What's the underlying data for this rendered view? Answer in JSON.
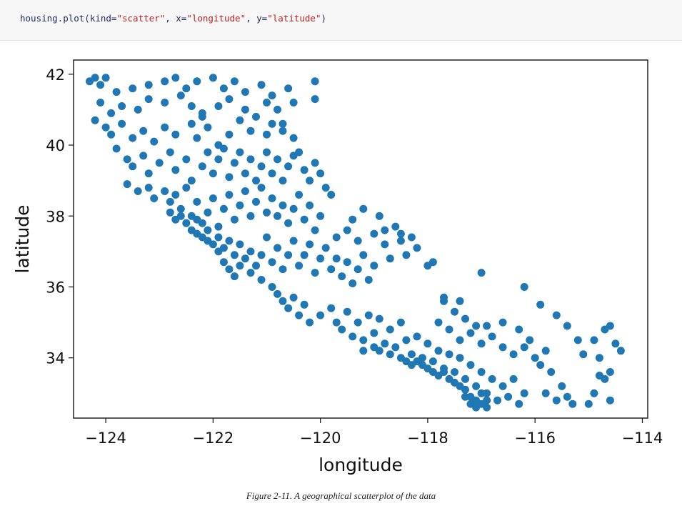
{
  "code": {
    "prefix": "housing.plot(kind=",
    "kind_value": "\"scatter\"",
    "sep1": ", x=",
    "x_value": "\"longitude\"",
    "sep2": ", y=",
    "y_value": "\"latitude\"",
    "suffix": ")"
  },
  "caption": "Figure 2-11. A geographical scatterplot of the data",
  "chart_data": {
    "type": "scatter",
    "title": "",
    "xlabel": "longitude",
    "ylabel": "latitude",
    "xlim": [
      -124.6,
      -113.9
    ],
    "ylim": [
      32.3,
      42.4
    ],
    "xticks": [
      -124,
      -122,
      -120,
      -118,
      -116,
      -114
    ],
    "xtick_labels": [
      "−124",
      "−122",
      "−120",
      "−118",
      "−116",
      "−114"
    ],
    "yticks": [
      34,
      36,
      38,
      40,
      42
    ],
    "ytick_labels": [
      "34",
      "36",
      "38",
      "40",
      "42"
    ],
    "grid": false,
    "marker_color": "#1f77b4",
    "points": [
      [
        -124.3,
        41.8
      ],
      [
        -124.2,
        41.9
      ],
      [
        -124.1,
        41.7
      ],
      [
        -124.0,
        41.9
      ],
      [
        -123.8,
        41.5
      ],
      [
        -123.5,
        41.6
      ],
      [
        -123.2,
        41.7
      ],
      [
        -122.9,
        41.8
      ],
      [
        -122.7,
        41.9
      ],
      [
        -122.5,
        41.6
      ],
      [
        -122.3,
        41.8
      ],
      [
        -122.0,
        41.9
      ],
      [
        -121.8,
        41.6
      ],
      [
        -121.6,
        41.8
      ],
      [
        -121.4,
        41.5
      ],
      [
        -121.1,
        41.7
      ],
      [
        -120.9,
        41.4
      ],
      [
        -120.6,
        41.6
      ],
      [
        -120.5,
        41.2
      ],
      [
        -120.1,
        41.8
      ],
      [
        -120.1,
        41.3
      ],
      [
        -124.1,
        41.2
      ],
      [
        -123.9,
        40.9
      ],
      [
        -123.7,
        41.1
      ],
      [
        -123.4,
        41.0
      ],
      [
        -123.2,
        41.3
      ],
      [
        -122.9,
        41.2
      ],
      [
        -122.6,
        41.4
      ],
      [
        -122.4,
        41.1
      ],
      [
        -122.2,
        40.9
      ],
      [
        -121.9,
        41.1
      ],
      [
        -121.7,
        41.3
      ],
      [
        -121.4,
        41.0
      ],
      [
        -121.2,
        40.8
      ],
      [
        -121.0,
        41.2
      ],
      [
        -120.8,
        41.0
      ],
      [
        -120.7,
        40.6
      ],
      [
        -124.2,
        40.7
      ],
      [
        -124.0,
        40.5
      ],
      [
        -123.9,
        40.3
      ],
      [
        -123.7,
        40.6
      ],
      [
        -123.5,
        40.2
      ],
      [
        -123.3,
        40.4
      ],
      [
        -123.1,
        40.1
      ],
      [
        -122.9,
        40.5
      ],
      [
        -122.7,
        40.3
      ],
      [
        -122.4,
        40.6
      ],
      [
        -122.3,
        40.2
      ],
      [
        -122.2,
        40.8
      ],
      [
        -122.1,
        40.5
      ],
      [
        -121.9,
        40.0
      ],
      [
        -121.7,
        40.3
      ],
      [
        -121.5,
        40.7
      ],
      [
        -121.3,
        40.4
      ],
      [
        -121.0,
        40.3
      ],
      [
        -120.9,
        40.6
      ],
      [
        -120.7,
        40.4
      ],
      [
        -120.5,
        40.2
      ],
      [
        -120.4,
        39.8
      ],
      [
        -123.8,
        39.9
      ],
      [
        -123.6,
        39.6
      ],
      [
        -123.5,
        39.4
      ],
      [
        -123.3,
        39.7
      ],
      [
        -123.2,
        39.2
      ],
      [
        -123.0,
        39.5
      ],
      [
        -122.8,
        39.8
      ],
      [
        -122.7,
        39.3
      ],
      [
        -122.5,
        39.6
      ],
      [
        -122.4,
        39.0
      ],
      [
        -122.2,
        39.4
      ],
      [
        -122.1,
        39.8
      ],
      [
        -122.0,
        39.2
      ],
      [
        -121.9,
        39.6
      ],
      [
        -121.8,
        39.9
      ],
      [
        -121.7,
        39.1
      ],
      [
        -121.6,
        39.5
      ],
      [
        -121.5,
        39.8
      ],
      [
        -121.4,
        39.2
      ],
      [
        -121.3,
        39.6
      ],
      [
        -121.2,
        39.0
      ],
      [
        -121.1,
        39.4
      ],
      [
        -121.0,
        39.8
      ],
      [
        -120.9,
        39.2
      ],
      [
        -120.8,
        39.6
      ],
      [
        -120.7,
        39.0
      ],
      [
        -120.6,
        39.4
      ],
      [
        -120.5,
        39.7
      ],
      [
        -120.3,
        39.3
      ],
      [
        -120.2,
        39.0
      ],
      [
        -120.1,
        39.5
      ],
      [
        -120.0,
        39.2
      ],
      [
        -119.9,
        38.8
      ],
      [
        -119.8,
        38.6
      ],
      [
        -123.6,
        38.9
      ],
      [
        -123.4,
        38.7
      ],
      [
        -123.2,
        38.8
      ],
      [
        -123.1,
        38.5
      ],
      [
        -122.9,
        38.7
      ],
      [
        -122.8,
        38.4
      ],
      [
        -122.7,
        38.6
      ],
      [
        -122.6,
        38.2
      ],
      [
        -122.5,
        38.8
      ],
      [
        -122.4,
        38.0
      ],
      [
        -122.3,
        38.4
      ],
      [
        -122.2,
        37.8
      ],
      [
        -122.1,
        38.1
      ],
      [
        -122.0,
        38.5
      ],
      [
        -121.9,
        37.7
      ],
      [
        -121.8,
        38.2
      ],
      [
        -121.7,
        38.6
      ],
      [
        -121.6,
        37.9
      ],
      [
        -121.5,
        38.3
      ],
      [
        -121.4,
        38.7
      ],
      [
        -121.3,
        38.0
      ],
      [
        -121.2,
        38.4
      ],
      [
        -121.1,
        38.8
      ],
      [
        -121.0,
        38.1
      ],
      [
        -120.9,
        38.5
      ],
      [
        -120.8,
        38.0
      ],
      [
        -120.7,
        38.3
      ],
      [
        -120.6,
        37.8
      ],
      [
        -120.5,
        38.2
      ],
      [
        -120.4,
        38.6
      ],
      [
        -120.3,
        37.9
      ],
      [
        -120.2,
        38.3
      ],
      [
        -120.1,
        37.6
      ],
      [
        -120.0,
        38.0
      ],
      [
        -122.5,
        37.8
      ],
      [
        -122.4,
        37.6
      ],
      [
        -122.3,
        37.5
      ],
      [
        -122.2,
        37.4
      ],
      [
        -122.1,
        37.3
      ],
      [
        -122.0,
        37.2
      ],
      [
        -121.9,
        37.4
      ],
      [
        -121.8,
        37.1
      ],
      [
        -121.7,
        37.3
      ],
      [
        -121.6,
        36.9
      ],
      [
        -121.5,
        37.2
      ],
      [
        -121.4,
        36.8
      ],
      [
        -121.3,
        37.0
      ],
      [
        -121.2,
        36.6
      ],
      [
        -121.1,
        36.9
      ],
      [
        -121.0,
        37.4
      ],
      [
        -120.9,
        36.7
      ],
      [
        -120.8,
        37.1
      ],
      [
        -120.7,
        36.5
      ],
      [
        -120.6,
        36.9
      ],
      [
        -120.5,
        37.3
      ],
      [
        -120.4,
        36.6
      ],
      [
        -120.3,
        36.9
      ],
      [
        -120.2,
        37.2
      ],
      [
        -120.1,
        36.4
      ],
      [
        -120.0,
        36.8
      ],
      [
        -119.9,
        37.1
      ],
      [
        -119.8,
        36.5
      ],
      [
        -119.7,
        36.8
      ],
      [
        -119.6,
        36.3
      ],
      [
        -119.5,
        36.7
      ],
      [
        -119.4,
        36.1
      ],
      [
        -119.3,
        36.5
      ],
      [
        -119.2,
        36.9
      ],
      [
        -119.1,
        36.2
      ],
      [
        -119.0,
        36.6
      ],
      [
        -122.6,
        38.0
      ],
      [
        -122.7,
        37.9
      ],
      [
        -122.8,
        38.1
      ],
      [
        -122.3,
        37.9
      ],
      [
        -122.1,
        37.6
      ],
      [
        -121.9,
        37.0
      ],
      [
        -121.8,
        36.7
      ],
      [
        -121.7,
        36.5
      ],
      [
        -121.6,
        36.3
      ],
      [
        -121.5,
        36.6
      ],
      [
        -121.3,
        36.4
      ],
      [
        -121.1,
        36.2
      ],
      [
        -120.9,
        36.0
      ],
      [
        -120.8,
        35.8
      ],
      [
        -120.7,
        35.6
      ],
      [
        -120.6,
        35.4
      ],
      [
        -120.5,
        35.7
      ],
      [
        -120.4,
        35.2
      ],
      [
        -120.3,
        35.5
      ],
      [
        -120.2,
        35.0
      ],
      [
        -119.7,
        37.4
      ],
      [
        -119.5,
        37.6
      ],
      [
        -119.3,
        37.3
      ],
      [
        -119.0,
        37.5
      ],
      [
        -118.8,
        37.2
      ],
      [
        -118.6,
        37.7
      ],
      [
        -118.5,
        37.3
      ],
      [
        -118.4,
        36.9
      ],
      [
        -118.2,
        37.1
      ],
      [
        -118.0,
        36.6
      ],
      [
        -117.9,
        36.7
      ],
      [
        -118.9,
        38.0
      ],
      [
        -119.2,
        38.2
      ],
      [
        -119.4,
        37.9
      ],
      [
        -118.7,
        36.8
      ],
      [
        -120.0,
        35.2
      ],
      [
        -119.8,
        35.4
      ],
      [
        -119.7,
        35.0
      ],
      [
        -119.6,
        34.8
      ],
      [
        -119.5,
        35.3
      ],
      [
        -119.4,
        34.6
      ],
      [
        -119.3,
        35.0
      ],
      [
        -119.2,
        34.5
      ],
      [
        -119.1,
        35.2
      ],
      [
        -119.0,
        34.7
      ],
      [
        -118.9,
        35.1
      ],
      [
        -118.8,
        34.4
      ],
      [
        -118.7,
        34.8
      ],
      [
        -118.6,
        34.3
      ],
      [
        -118.5,
        35.0
      ],
      [
        -118.4,
        34.5
      ],
      [
        -118.3,
        34.1
      ],
      [
        -118.2,
        34.6
      ],
      [
        -118.1,
        34.0
      ],
      [
        -118.0,
        34.4
      ],
      [
        -117.9,
        33.9
      ],
      [
        -117.8,
        34.2
      ],
      [
        -117.7,
        33.7
      ],
      [
        -117.6,
        34.1
      ],
      [
        -117.5,
        33.6
      ],
      [
        -117.4,
        34.0
      ],
      [
        -117.3,
        33.4
      ],
      [
        -117.2,
        33.8
      ],
      [
        -117.1,
        33.2
      ],
      [
        -117.0,
        33.6
      ],
      [
        -116.9,
        33.0
      ],
      [
        -116.8,
        33.4
      ],
      [
        -116.7,
        32.8
      ],
      [
        -116.6,
        33.2
      ],
      [
        -116.5,
        32.9
      ],
      [
        -116.4,
        33.4
      ],
      [
        -116.3,
        32.7
      ],
      [
        -116.2,
        33.0
      ],
      [
        -119.2,
        34.2
      ],
      [
        -119.0,
        34.3
      ],
      [
        -118.9,
        34.2
      ],
      [
        -118.7,
        34.1
      ],
      [
        -118.5,
        34.0
      ],
      [
        -118.4,
        33.9
      ],
      [
        -118.3,
        33.8
      ],
      [
        -118.2,
        33.9
      ],
      [
        -118.1,
        33.8
      ],
      [
        -118.0,
        33.7
      ],
      [
        -117.9,
        33.6
      ],
      [
        -117.8,
        33.5
      ],
      [
        -117.7,
        33.6
      ],
      [
        -117.6,
        33.4
      ],
      [
        -117.5,
        33.3
      ],
      [
        -117.4,
        33.2
      ],
      [
        -117.3,
        33.1
      ],
      [
        -117.2,
        32.9
      ],
      [
        -117.1,
        32.8
      ],
      [
        -117.0,
        32.7
      ],
      [
        -116.9,
        32.6
      ],
      [
        -117.2,
        32.7
      ],
      [
        -117.1,
        32.6
      ],
      [
        -117.3,
        32.9
      ],
      [
        -117.0,
        33.0
      ],
      [
        -116.9,
        32.8
      ],
      [
        -117.8,
        35.0
      ],
      [
        -117.6,
        34.8
      ],
      [
        -117.4,
        34.5
      ],
      [
        -117.2,
        34.7
      ],
      [
        -117.0,
        34.4
      ],
      [
        -116.8,
        34.6
      ],
      [
        -116.6,
        34.3
      ],
      [
        -116.4,
        34.1
      ],
      [
        -116.2,
        34.3
      ],
      [
        -116.0,
        34.0
      ],
      [
        -115.9,
        33.8
      ],
      [
        -115.7,
        33.6
      ],
      [
        -115.5,
        33.2
      ],
      [
        -115.4,
        32.9
      ],
      [
        -115.6,
        32.8
      ],
      [
        -115.8,
        33.0
      ],
      [
        -115.3,
        32.7
      ],
      [
        -115.0,
        32.7
      ],
      [
        -117.0,
        36.4
      ],
      [
        -116.2,
        36.0
      ],
      [
        -115.9,
        35.5
      ],
      [
        -115.6,
        35.2
      ],
      [
        -115.4,
        34.9
      ],
      [
        -115.2,
        34.5
      ],
      [
        -114.9,
        34.5
      ],
      [
        -114.7,
        34.8
      ],
      [
        -114.6,
        34.9
      ],
      [
        -114.5,
        34.4
      ],
      [
        -114.4,
        34.2
      ],
      [
        -114.8,
        33.5
      ],
      [
        -114.6,
        33.6
      ],
      [
        -114.7,
        33.4
      ],
      [
        -114.9,
        33.0
      ],
      [
        -114.6,
        32.8
      ],
      [
        -115.1,
        34.1
      ],
      [
        -114.8,
        34.0
      ],
      [
        -118.8,
        37.6
      ],
      [
        -118.5,
        37.5
      ],
      [
        -118.3,
        37.4
      ],
      [
        -117.7,
        35.6
      ],
      [
        -117.4,
        35.6
      ],
      [
        -117.7,
        35.7
      ],
      [
        -117.3,
        35.1
      ],
      [
        -117.1,
        34.9
      ],
      [
        -116.9,
        34.9
      ],
      [
        -117.5,
        35.3
      ],
      [
        -116.6,
        35.0
      ],
      [
        -116.3,
        34.8
      ],
      [
        -116.1,
        34.5
      ],
      [
        -115.8,
        34.2
      ]
    ]
  }
}
